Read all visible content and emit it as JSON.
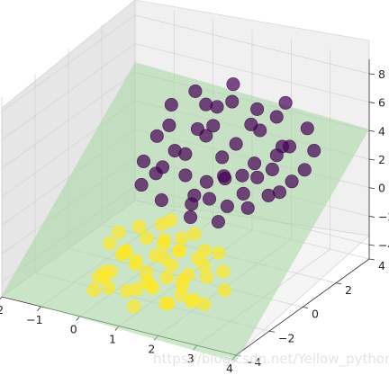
{
  "chart_data": {
    "type": "scatter3d",
    "xlim": [
      -2,
      4
    ],
    "ylim": [
      -4,
      4
    ],
    "zlim": [
      -5,
      9
    ],
    "x_ticks": [
      "−2",
      "−1",
      "0",
      "1",
      "2",
      "3",
      "4"
    ],
    "y_ticks": [
      "−4",
      "−2",
      "0",
      "2",
      "4"
    ],
    "z_ticks": [
      "−4",
      "−2",
      "0",
      "2",
      "4",
      "6",
      "8"
    ],
    "plane_color": "#a6d6a0",
    "series": [
      {
        "color": "#440154",
        "points": [
          [
            -0.5,
            1.8,
            2.4
          ],
          [
            0.6,
            2.6,
            3.2
          ],
          [
            1.3,
            1.6,
            1.0
          ],
          [
            0.2,
            3.1,
            4.0
          ],
          [
            -0.3,
            0.4,
            0.3
          ],
          [
            1.5,
            3.3,
            2.9
          ],
          [
            2.2,
            2.4,
            1.4
          ],
          [
            0.9,
            0.6,
            -0.4
          ],
          [
            0.1,
            2.1,
            1.3
          ],
          [
            1.8,
            3.6,
            3.8
          ],
          [
            2.6,
            1.9,
            0.5
          ],
          [
            -0.1,
            1.2,
            1.0
          ],
          [
            1.1,
            2.8,
            2.1
          ],
          [
            0.4,
            1.4,
            0.6
          ],
          [
            1.6,
            1.1,
            -0.5
          ],
          [
            2.3,
            3.2,
            2.4
          ],
          [
            0.7,
            3.5,
            4.2
          ],
          [
            -0.6,
            2.9,
            3.6
          ],
          [
            1.9,
            2.2,
            0.8
          ],
          [
            0.3,
            0.2,
            -0.2
          ],
          [
            2.9,
            2.7,
            1.6
          ],
          [
            1.2,
            1.9,
            0.5
          ],
          [
            0.5,
            2.4,
            2.6
          ],
          [
            1.4,
            3.0,
            3.5
          ],
          [
            2.0,
            1.4,
            -0.6
          ],
          [
            -0.2,
            3.4,
            4.4
          ],
          [
            0.8,
            1.0,
            -0.2
          ],
          [
            2.5,
            3.8,
            3.3
          ],
          [
            1.7,
            2.5,
            1.4
          ],
          [
            0.0,
            1.7,
            1.8
          ],
          [
            1.0,
            0.3,
            -1.0
          ],
          [
            2.8,
            3.5,
            2.2
          ],
          [
            -0.4,
            2.3,
            2.8
          ],
          [
            1.6,
            2.0,
            0.9
          ],
          [
            0.6,
            3.8,
            5.1
          ],
          [
            2.1,
            2.9,
            1.9
          ],
          [
            1.3,
            3.6,
            4.0
          ],
          [
            0.2,
            2.6,
            2.7
          ],
          [
            2.4,
            1.7,
            0.3
          ],
          [
            1.0,
            2.2,
            1.6
          ],
          [
            -0.1,
            0.8,
            0.9
          ],
          [
            1.9,
            3.9,
            4.6
          ],
          [
            0.9,
            1.5,
            0.4
          ],
          [
            2.7,
            2.4,
            0.9
          ],
          [
            1.5,
            0.8,
            -1.4
          ],
          [
            0.4,
            3.3,
            3.8
          ],
          [
            2.2,
            3.0,
            2.5
          ],
          [
            1.1,
            1.2,
            -0.4
          ],
          [
            -0.5,
            1.0,
            1.3
          ],
          [
            1.8,
            1.6,
            0.1
          ]
        ]
      },
      {
        "color": "#fde725",
        "points": [
          [
            0.8,
            -2.5,
            -1.8
          ],
          [
            1.6,
            -1.8,
            -1.2
          ],
          [
            0.2,
            -3.0,
            -2.6
          ],
          [
            2.1,
            -2.4,
            -2.0
          ],
          [
            1.2,
            -3.4,
            -2.8
          ],
          [
            0.5,
            -1.6,
            -0.4
          ],
          [
            2.6,
            -1.5,
            -2.2
          ],
          [
            1.4,
            -2.9,
            -3.0
          ],
          [
            0.0,
            -2.2,
            -1.4
          ],
          [
            1.9,
            -3.3,
            -3.4
          ],
          [
            0.9,
            -1.2,
            -0.3
          ],
          [
            2.4,
            -2.8,
            -3.2
          ],
          [
            0.3,
            -3.6,
            -2.4
          ],
          [
            1.7,
            -2.0,
            -0.9
          ],
          [
            1.1,
            -2.6,
            -3.0
          ],
          [
            2.9,
            -2.1,
            -2.8
          ],
          [
            0.6,
            -2.9,
            -1.2
          ],
          [
            1.5,
            -1.4,
            -0.7
          ],
          [
            2.2,
            -3.0,
            -2.2
          ],
          [
            0.1,
            -1.9,
            -0.8
          ],
          [
            1.3,
            -3.8,
            -3.6
          ],
          [
            2.0,
            -1.6,
            -1.6
          ],
          [
            0.7,
            -2.3,
            -2.3
          ],
          [
            1.8,
            -2.7,
            -1.3
          ],
          [
            0.4,
            -3.2,
            -3.4
          ],
          [
            2.5,
            -2.4,
            -1.1
          ],
          [
            1.0,
            -1.8,
            -1.9
          ],
          [
            2.8,
            -3.1,
            -3.0
          ],
          [
            0.2,
            -2.6,
            -2.9
          ],
          [
            1.6,
            -3.5,
            -2.1
          ],
          [
            1.0,
            -0.9,
            -0.2
          ],
          [
            2.3,
            -1.9,
            -0.6
          ],
          [
            0.5,
            -3.7,
            -2.2
          ],
          [
            1.4,
            -2.2,
            -1.5
          ],
          [
            2.0,
            -2.6,
            -3.3
          ],
          [
            0.8,
            -3.1,
            -0.6
          ],
          [
            1.7,
            -1.1,
            -0.5
          ],
          [
            2.7,
            -2.7,
            -1.5
          ],
          [
            0.3,
            -2.0,
            -2.0
          ],
          [
            1.2,
            -2.8,
            -2.1
          ],
          [
            2.1,
            -3.6,
            -3.0
          ],
          [
            0.6,
            -1.4,
            -1.3
          ],
          [
            1.9,
            -2.3,
            -2.6
          ],
          [
            0.9,
            -3.3,
            -3.2
          ],
          [
            2.4,
            -1.3,
            -1.2
          ],
          [
            1.5,
            -2.5,
            -0.2
          ],
          [
            0.1,
            -3.4,
            -3.6
          ],
          [
            2.6,
            -3.4,
            -2.7
          ],
          [
            1.1,
            -1.5,
            -1.0
          ],
          [
            1.8,
            -3.0,
            -1.9
          ]
        ]
      }
    ]
  },
  "watermark": "https://blog.csdn.net/Yellow_python"
}
